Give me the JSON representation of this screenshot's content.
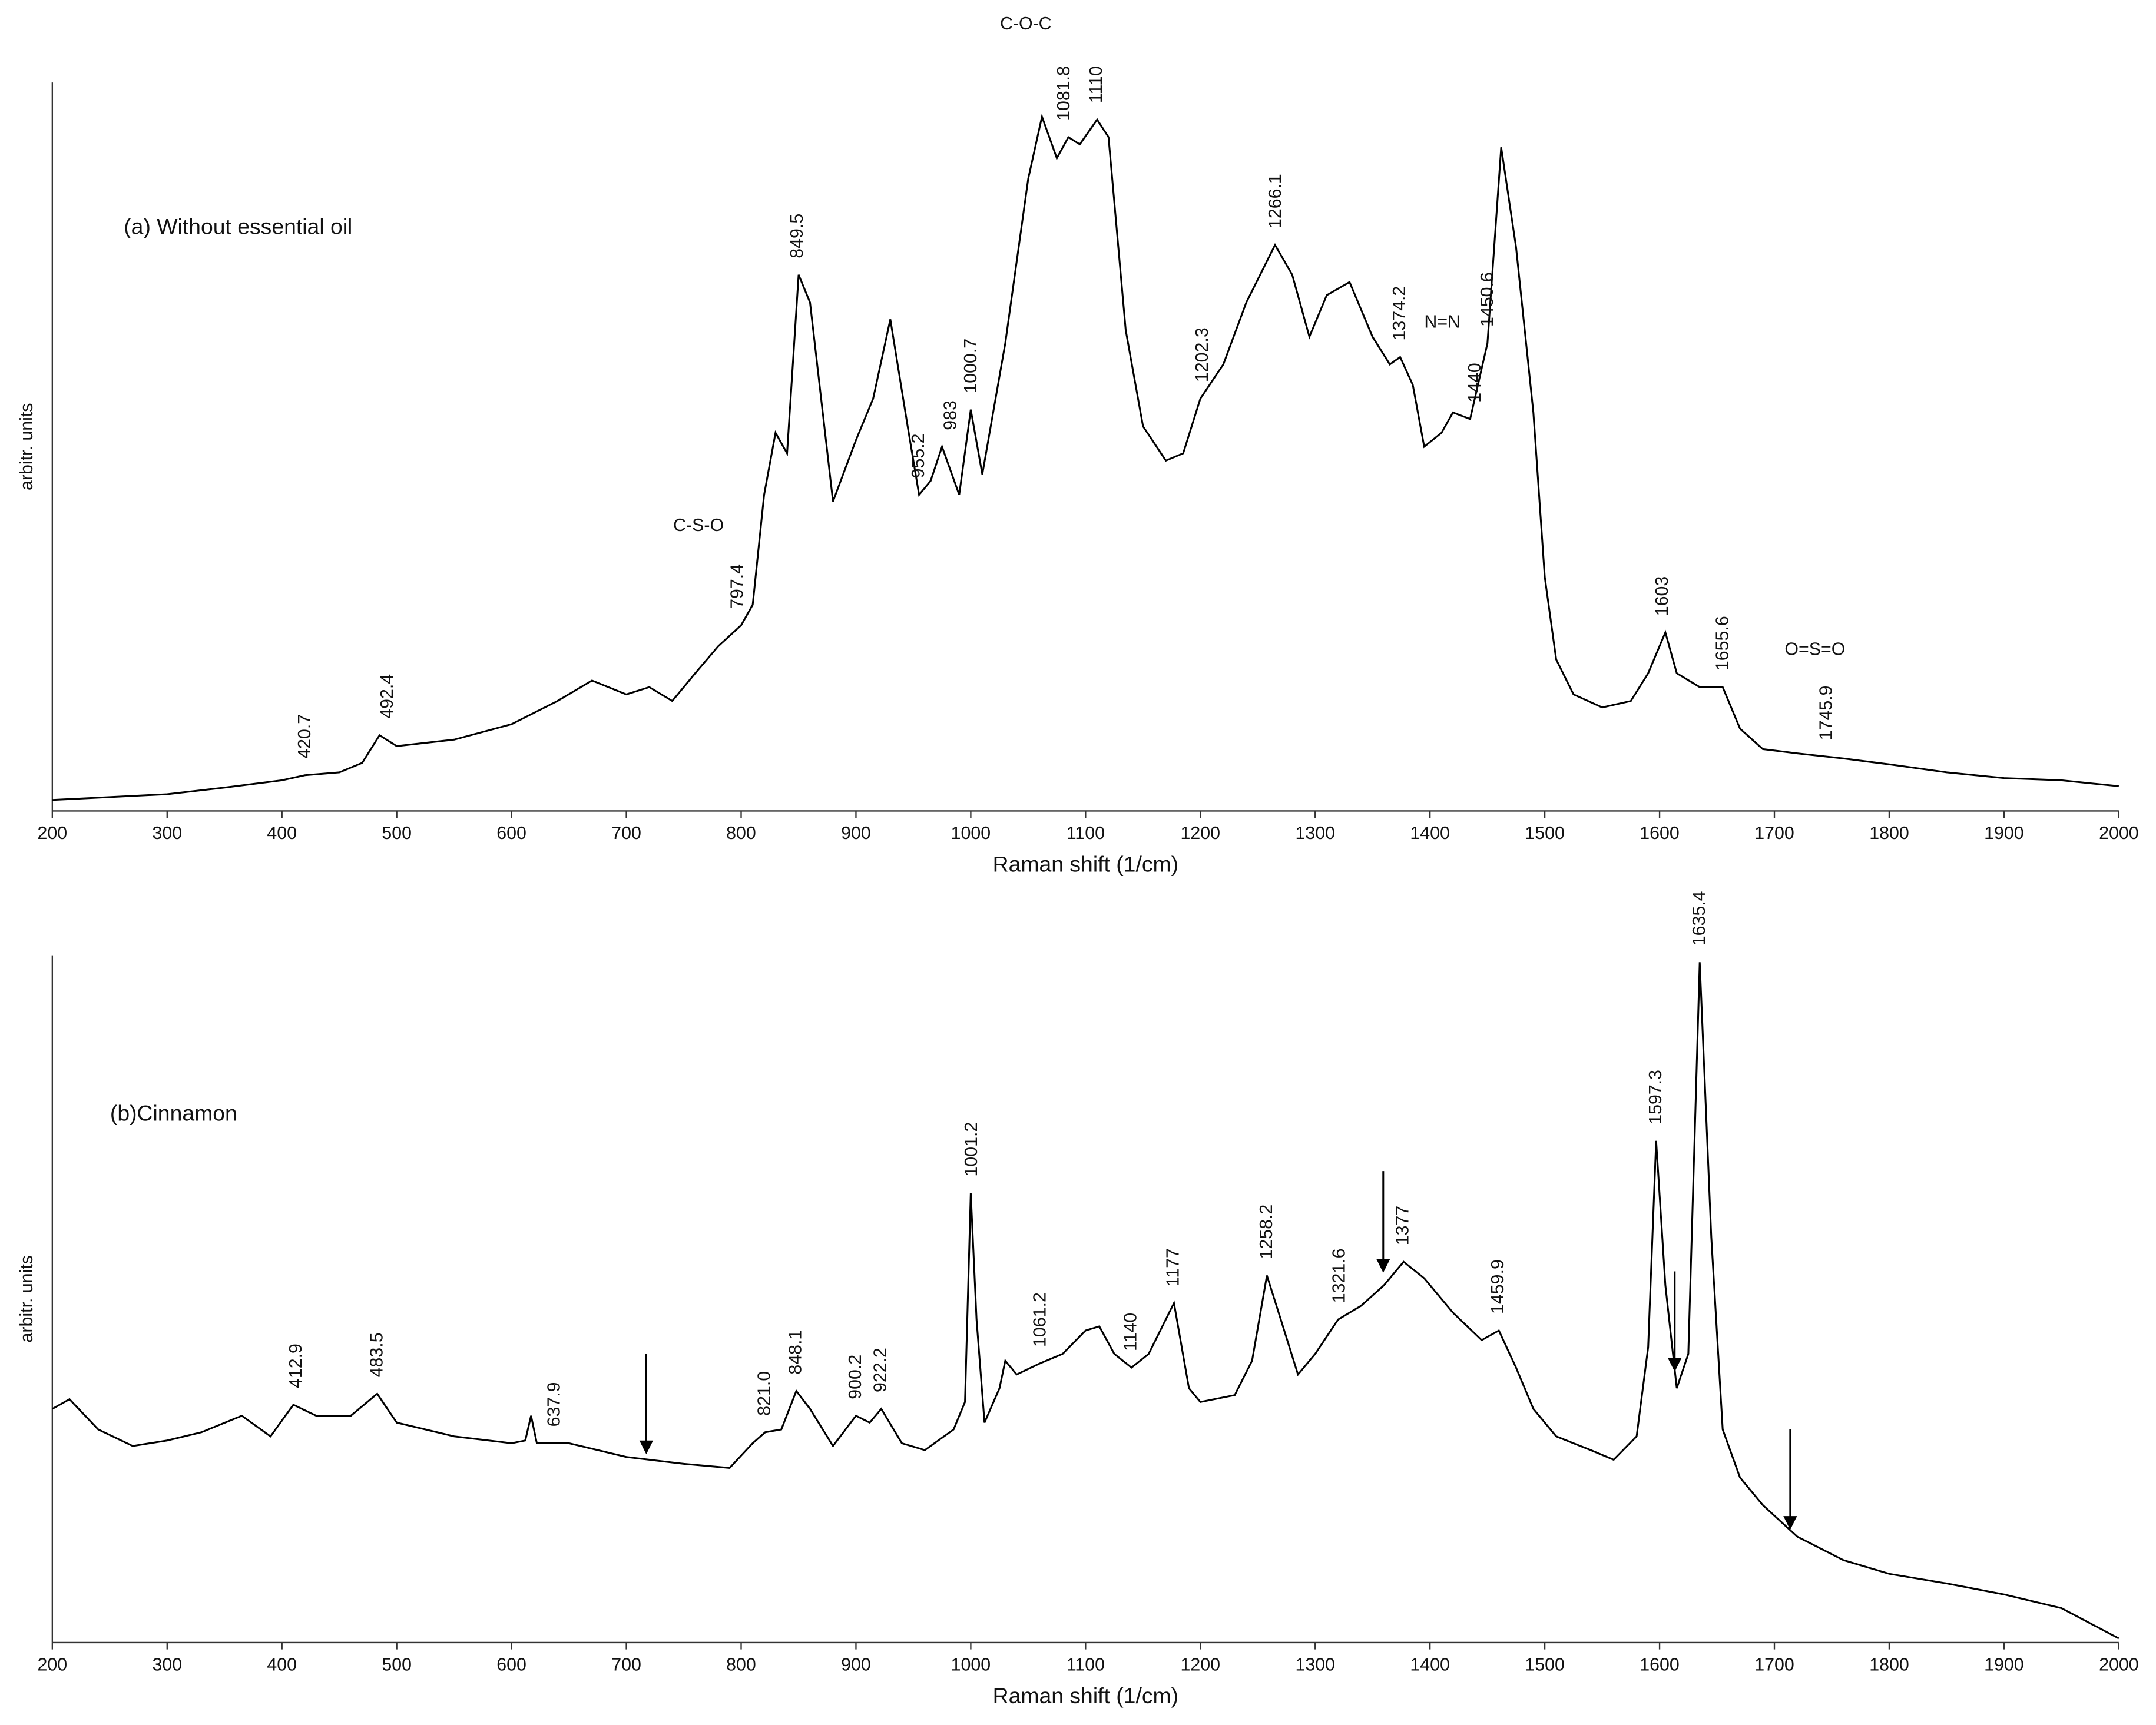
{
  "chart_data": [
    {
      "type": "line",
      "title": "(a) Without essential oil",
      "xlabel": "Raman shift (1/cm)",
      "ylabel": "arbitr. units",
      "color": "#000000",
      "x": [
        200,
        250,
        300,
        350,
        400,
        420,
        450,
        470,
        485,
        500,
        550,
        600,
        640,
        670,
        700,
        720,
        740,
        760,
        780,
        800,
        810,
        820,
        830,
        840,
        850,
        860,
        880,
        900,
        915,
        930,
        945,
        955,
        965,
        975,
        990,
        1000,
        1010,
        1030,
        1050,
        1062,
        1075,
        1085,
        1095,
        1110,
        1120,
        1135,
        1150,
        1170,
        1185,
        1200,
        1220,
        1240,
        1265,
        1280,
        1295,
        1310,
        1330,
        1350,
        1365,
        1374,
        1385,
        1395,
        1410,
        1420,
        1435,
        1450,
        1462,
        1475,
        1490,
        1500,
        1510,
        1525,
        1550,
        1575,
        1590,
        1605,
        1615,
        1635,
        1655,
        1670,
        1690,
        1720,
        1760,
        1800,
        1850,
        1900,
        1950,
        2000
      ],
      "values": [
        1.5,
        1.9,
        2.3,
        3.2,
        4.2,
        4.9,
        5.3,
        6.6,
        10.4,
        8.9,
        9.8,
        11.9,
        15.1,
        17.9,
        16.0,
        17.0,
        15.1,
        18.9,
        22.6,
        25.5,
        28.3,
        43.4,
        51.9,
        49.1,
        73.6,
        69.8,
        42.5,
        50.9,
        56.6,
        67.5,
        52.8,
        43.4,
        45.3,
        50.0,
        43.4,
        55.1,
        46.2,
        64.2,
        86.8,
        95.3,
        89.6,
        92.5,
        91.5,
        94.9,
        92.5,
        66.0,
        52.8,
        48.1,
        49.1,
        56.6,
        61.3,
        69.8,
        77.7,
        73.6,
        65.1,
        70.8,
        72.6,
        65.1,
        61.3,
        62.3,
        58.5,
        50.0,
        51.9,
        54.7,
        53.8,
        64.2,
        91.1,
        77.4,
        54.7,
        32.1,
        20.8,
        16.0,
        14.2,
        15.1,
        18.9,
        24.5,
        18.9,
        17.0,
        17.0,
        11.3,
        8.5,
        7.9,
        7.2,
        6.4,
        5.3,
        4.5,
        4.2,
        3.4
      ],
      "xlim": [
        200,
        2000
      ],
      "xticks": [
        200,
        300,
        400,
        500,
        600,
        700,
        800,
        900,
        1000,
        1100,
        1200,
        1300,
        1400,
        1500,
        1600,
        1700,
        1800,
        1900,
        2000
      ],
      "ylim": [
        0,
        100
      ],
      "peak_labels": [
        "420.7",
        "492.4",
        "797.4",
        "849.5",
        "955.2",
        "983",
        "1000.7",
        "1081.8",
        "1110",
        "1202.3",
        "1266.1",
        "1374.2",
        "1440",
        "1450.6",
        "1603",
        "1655.6",
        "1745.9"
      ],
      "group_labels": [
        "C-S-O",
        "C-O-C",
        "N=N",
        "O=S=O"
      ]
    },
    {
      "type": "line",
      "title": "(b)Cinnamon",
      "xlabel": "Raman shift (1/cm)",
      "ylabel": "arbitr. units",
      "color": "#000000",
      "x": [
        200,
        215,
        240,
        270,
        300,
        330,
        365,
        390,
        410,
        430,
        460,
        483,
        500,
        550,
        600,
        612,
        617,
        622,
        650,
        700,
        750,
        790,
        810,
        821,
        835,
        848,
        860,
        880,
        900,
        912,
        922,
        940,
        960,
        985,
        995,
        1000,
        1005,
        1012,
        1025,
        1030,
        1040,
        1060,
        1080,
        1100,
        1112,
        1125,
        1140,
        1155,
        1177,
        1190,
        1200,
        1230,
        1245,
        1258,
        1270,
        1285,
        1300,
        1320,
        1340,
        1360,
        1377,
        1395,
        1420,
        1445,
        1460,
        1475,
        1490,
        1510,
        1540,
        1560,
        1580,
        1590,
        1597,
        1605,
        1615,
        1625,
        1635,
        1645,
        1655,
        1670,
        1690,
        1720,
        1760,
        1800,
        1850,
        1900,
        1950,
        2000
      ],
      "values": [
        34,
        35.4,
        31,
        28.6,
        29.4,
        30.6,
        33,
        30,
        34.6,
        33,
        33,
        36.2,
        32,
        30,
        29,
        29.4,
        33,
        29,
        29,
        27,
        26,
        25.4,
        29,
        30.6,
        31,
        36.6,
        34,
        28.6,
        33,
        32,
        34,
        29,
        28,
        31,
        35,
        65.4,
        47,
        32,
        37,
        41,
        39,
        40.6,
        42,
        45.4,
        46,
        42,
        40,
        42,
        49.4,
        37,
        35,
        36,
        41,
        53.4,
        47,
        39,
        42,
        47,
        49,
        52,
        55.4,
        53,
        48,
        44,
        45.4,
        40,
        34,
        30,
        28,
        26.6,
        30,
        43,
        73,
        52,
        37,
        42,
        99,
        59,
        31,
        24,
        20,
        15.4,
        12,
        10,
        8.6,
        7,
        5,
        0.6
      ],
      "xlim": [
        200,
        2000
      ],
      "xticks": [
        200,
        300,
        400,
        500,
        600,
        700,
        800,
        900,
        1000,
        1100,
        1200,
        1300,
        1400,
        1500,
        1600,
        1700,
        1800,
        1900,
        2000
      ],
      "ylim": [
        0,
        100
      ],
      "peak_labels": [
        "412.9",
        "483.5",
        "637.9",
        "821.0",
        "848.1",
        "900.2",
        "922.2",
        "1001.2",
        "1061.2",
        "1140",
        "1177",
        "1258.2",
        "1321.6",
        "1377",
        "1459.9",
        "1597.3",
        "1635.4"
      ]
    }
  ]
}
